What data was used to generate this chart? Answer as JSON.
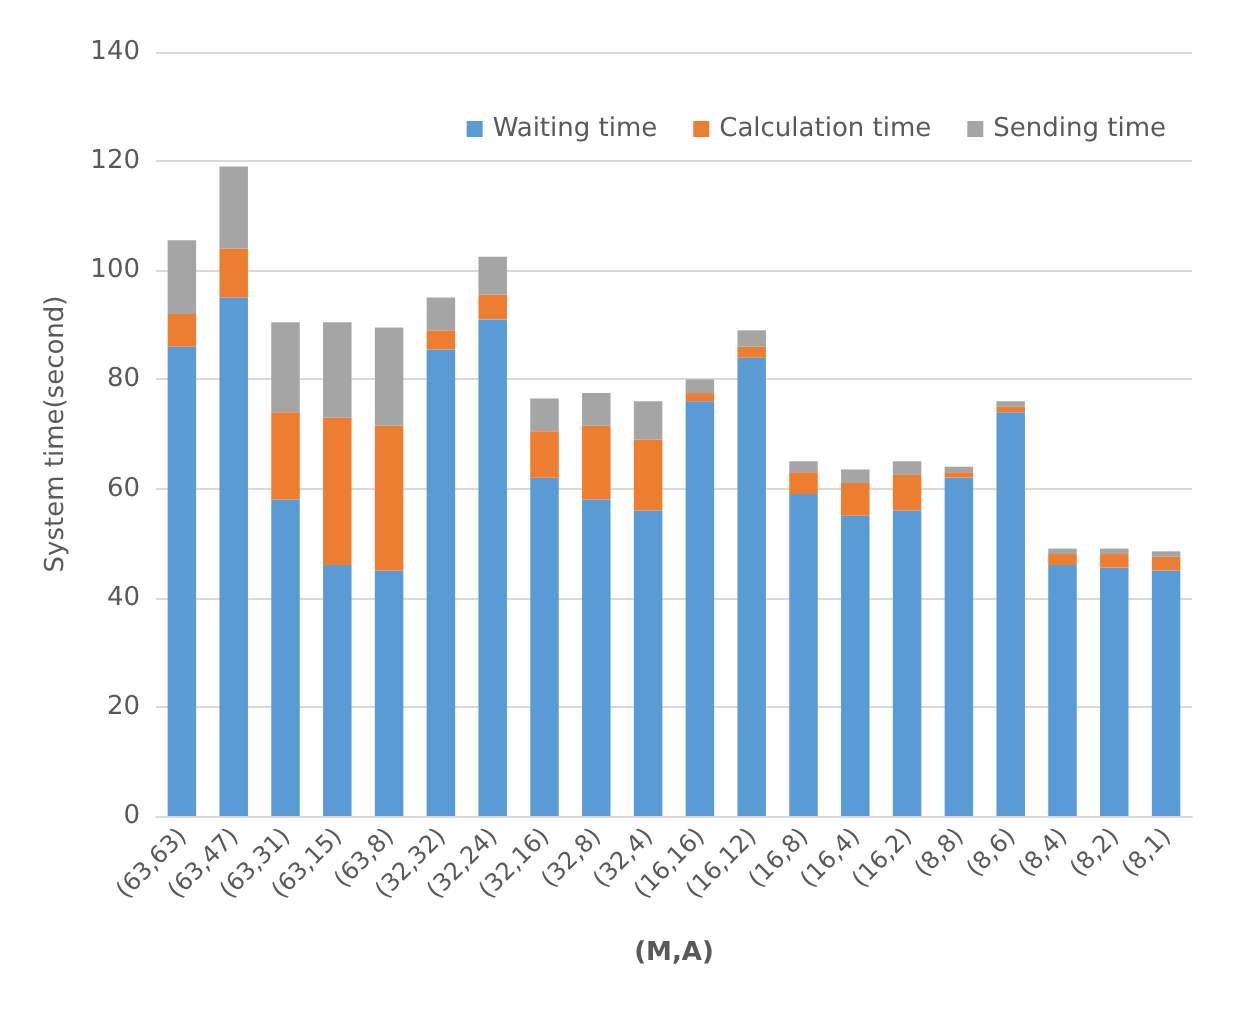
{
  "chart_data": {
    "type": "bar",
    "stacked": true,
    "xlabel": "(M,A)",
    "ylabel": "System time(second)",
    "categories": [
      "(63,63)",
      "(63,47)",
      "(63,31)",
      "(63,15)",
      "(63,8)",
      "(32,32)",
      "(32,24)",
      "(32,16)",
      "(32,8)",
      "(32,4)",
      "(16,16)",
      "(16,12)",
      "(16,8)",
      "(16,4)",
      "(16,2)",
      "(8,8)",
      "(8,6)",
      "(8,4)",
      "(8,2)",
      "(8,1)"
    ],
    "series": [
      {
        "name": "Waiting time",
        "color": "#5b9bd5",
        "values": [
          86,
          95,
          58,
          46,
          45,
          85.5,
          91,
          62,
          58,
          56,
          76,
          84,
          59,
          55,
          56,
          62,
          74,
          46,
          45.5,
          45
        ]
      },
      {
        "name": "Calculation time",
        "color": "#ed7d31",
        "values": [
          6,
          9,
          16,
          27,
          26.5,
          3.5,
          4.5,
          8.5,
          13.5,
          13,
          1.5,
          2,
          4,
          6,
          6.5,
          1,
          1,
          2,
          2.5,
          2.5
        ]
      },
      {
        "name": "Sending time",
        "color": "#a5a5a5",
        "values": [
          13.5,
          15,
          16.5,
          17.5,
          18,
          6,
          7,
          6,
          6,
          7,
          2.5,
          3,
          2,
          2.5,
          2.5,
          1,
          1,
          1,
          1,
          1
        ]
      }
    ],
    "ylim": [
      0,
      140
    ],
    "yticks": [
      0,
      20,
      40,
      60,
      80,
      100,
      120,
      140
    ],
    "grid": "y",
    "legend": "top right"
  }
}
